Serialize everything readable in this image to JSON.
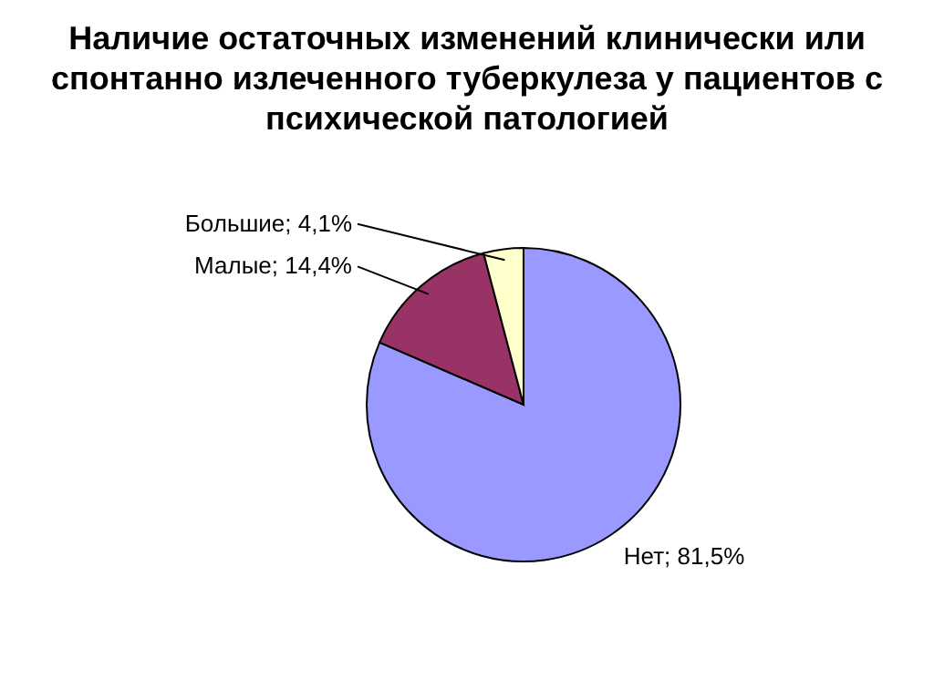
{
  "chart_data": {
    "type": "pie",
    "title": "Наличие остаточных изменений клинически или спонтанно излеченного туберкулеза у пациентов с психической патологией",
    "categories": [
      "Нет",
      "Малые",
      "Большие"
    ],
    "values": [
      81.5,
      14.4,
      4.1
    ],
    "value_labels": [
      "81,5%",
      "14,4%",
      "4,1%"
    ],
    "colors": [
      "#9999ff",
      "#993366",
      "#ffffcc"
    ]
  }
}
